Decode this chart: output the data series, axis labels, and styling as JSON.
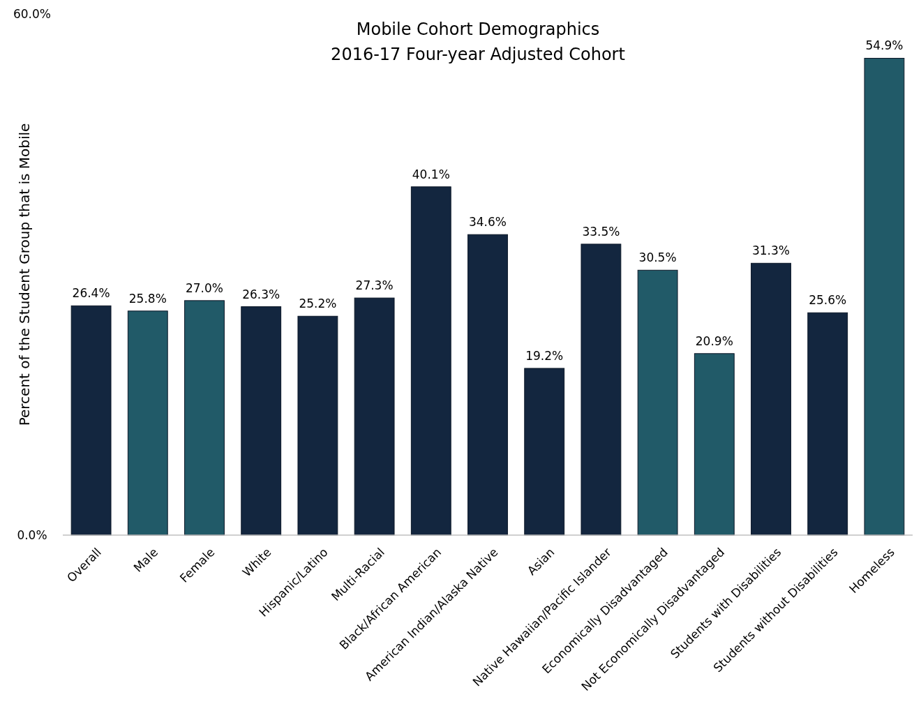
{
  "chart_data": {
    "type": "bar",
    "title": "Mobile Cohort Demographics",
    "subtitle": "2016-17 Four-year Adjusted Cohort",
    "ylabel": "Percent of the Student Group that is Mobile",
    "categories": [
      "Overall",
      "Male",
      "Female",
      "White",
      "Hispanic/Latino",
      "Multi-Racial",
      "Black/African American",
      "American Indian/Alaska Native",
      "Asian",
      "Native Hawaiian/Pacific Islander",
      "Economically Disadvantaged",
      "Not Economically Disadvantaged",
      "Students with Disabilities",
      "Students without Disabilities",
      "Homeless"
    ],
    "values": [
      26.4,
      25.8,
      27.0,
      26.3,
      25.2,
      27.3,
      40.1,
      34.6,
      19.2,
      33.5,
      30.5,
      20.9,
      31.3,
      25.6,
      54.9
    ],
    "value_labels": [
      "26.4%",
      "25.8%",
      "27.0%",
      "26.3%",
      "25.2%",
      "27.3%",
      "40.1%",
      "34.6%",
      "19.2%",
      "33.5%",
      "30.5%",
      "20.9%",
      "31.3%",
      "25.6%",
      "54.9%"
    ],
    "colors": [
      "#13263f",
      "#215a68",
      "#215a68",
      "#13263f",
      "#13263f",
      "#13263f",
      "#13263f",
      "#13263f",
      "#13263f",
      "#13263f",
      "#215a68",
      "#215a68",
      "#13263f",
      "#13263f",
      "#215a68"
    ],
    "ylim": [
      0,
      60
    ],
    "yticks": [
      {
        "value": 0,
        "label": "0.0%"
      },
      {
        "value": 60,
        "label": "60.0%"
      }
    ],
    "grid": false
  }
}
